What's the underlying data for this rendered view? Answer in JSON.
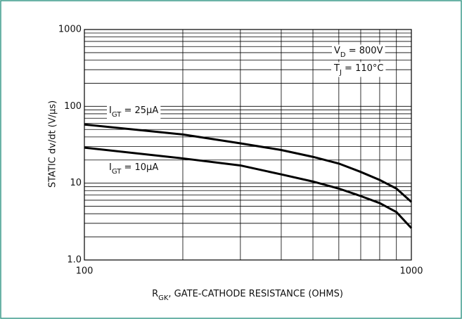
{
  "chart_data": {
    "type": "line",
    "x_label": [
      "R",
      "GK",
      ", GATE-CATHODE RESISTANCE (OHMS)"
    ],
    "y_label": "STATIC dv/dt (V/µs)",
    "xscale": "log",
    "yscale": "log",
    "xlim": [
      100,
      1000
    ],
    "ylim": [
      1,
      1000
    ],
    "xticks": [
      100,
      1000
    ],
    "yticks": [
      {
        "value": 1,
        "label": "1.0"
      },
      10,
      100,
      1000
    ],
    "xgrid": [
      200,
      300,
      400,
      500,
      600,
      700,
      800,
      900
    ],
    "ygrid": [
      2,
      3,
      4,
      5,
      6,
      7,
      8,
      9,
      20,
      30,
      40,
      50,
      60,
      70,
      80,
      90,
      200,
      300,
      400,
      500,
      600,
      700,
      800,
      900
    ],
    "grid": true,
    "annotations": [
      {
        "parts": [
          "V",
          "D",
          " = 800V"
        ]
      },
      {
        "parts": [
          "T",
          "J",
          " = 110°C"
        ]
      }
    ],
    "series": [
      {
        "label": [
          "I",
          "GT",
          " = 25µA"
        ],
        "color": "#000000",
        "x": [
          100,
          200,
          300,
          400,
          500,
          600,
          700,
          800,
          900,
          1000
        ],
        "values": [
          58,
          43,
          33,
          27,
          22,
          18,
          14,
          11,
          8.5,
          5.7
        ]
      },
      {
        "label": [
          "I",
          "GT",
          " = 10µA"
        ],
        "color": "#000000",
        "x": [
          100,
          200,
          300,
          400,
          500,
          600,
          700,
          800,
          900,
          1000
        ],
        "values": [
          29,
          21,
          17,
          13,
          10.5,
          8.5,
          6.8,
          5.5,
          4.2,
          2.6
        ]
      }
    ]
  }
}
